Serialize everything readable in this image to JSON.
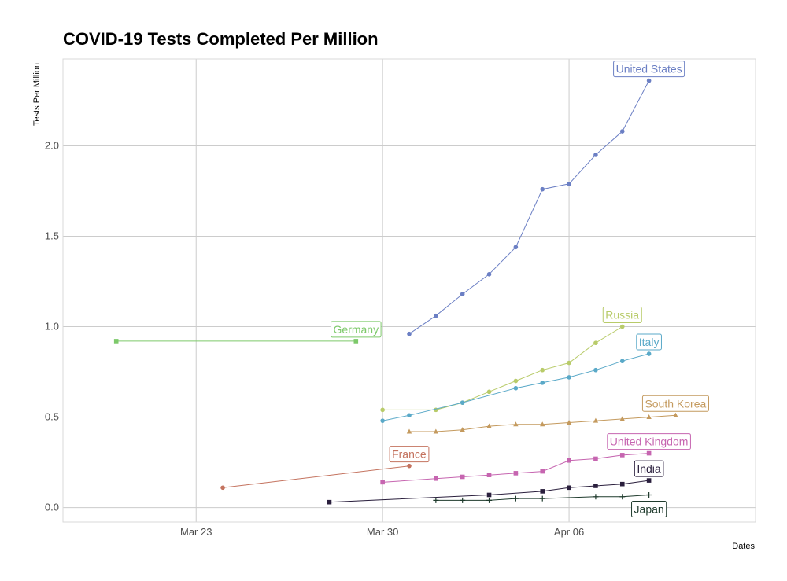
{
  "chart_data": {
    "type": "line",
    "title": "COVID-19 Tests Completed Per Million",
    "xlabel": "Dates",
    "ylabel": "Tests Per Million",
    "xlim": [
      "2020-03-18",
      "2020-04-13"
    ],
    "ylim": [
      -0.08,
      2.48
    ],
    "x_ticks": [
      {
        "date": "2020-03-23",
        "label": "Mar 23"
      },
      {
        "date": "2020-03-30",
        "label": "Mar 30"
      },
      {
        "date": "2020-04-06",
        "label": "Apr 06"
      }
    ],
    "y_ticks": [
      {
        "value": 0.0,
        "label": "0.0"
      },
      {
        "value": 0.5,
        "label": "0.5"
      },
      {
        "value": 1.0,
        "label": "1.0"
      },
      {
        "value": 1.5,
        "label": "1.5"
      },
      {
        "value": 2.0,
        "label": "2.0"
      }
    ],
    "grid": true,
    "legend": "none",
    "series": [
      {
        "name": "United States",
        "color": "#6b7fc4",
        "marker": "circle",
        "points": [
          [
            "2020-03-31",
            0.96
          ],
          [
            "2020-04-01",
            1.06
          ],
          [
            "2020-04-02",
            1.18
          ],
          [
            "2020-04-03",
            1.29
          ],
          [
            "2020-04-04",
            1.44
          ],
          [
            "2020-04-05",
            1.76
          ],
          [
            "2020-04-06",
            1.79
          ],
          [
            "2020-04-07",
            1.95
          ],
          [
            "2020-04-08",
            2.08
          ],
          [
            "2020-04-09",
            2.36
          ]
        ]
      },
      {
        "name": "Germany",
        "color": "#7dc96a",
        "marker": "square",
        "points": [
          [
            "2020-03-20",
            0.92
          ],
          [
            "2020-03-29",
            0.92
          ]
        ]
      },
      {
        "name": "Russia",
        "color": "#b8cb69",
        "marker": "circle",
        "points": [
          [
            "2020-03-30",
            0.54
          ],
          [
            "2020-04-01",
            0.54
          ],
          [
            "2020-04-02",
            0.58
          ],
          [
            "2020-04-03",
            0.64
          ],
          [
            "2020-04-04",
            0.7
          ],
          [
            "2020-04-05",
            0.76
          ],
          [
            "2020-04-06",
            0.8
          ],
          [
            "2020-04-07",
            0.91
          ],
          [
            "2020-04-08",
            1.0
          ]
        ]
      },
      {
        "name": "Italy",
        "color": "#5aa9c8",
        "marker": "circle",
        "points": [
          [
            "2020-03-30",
            0.48
          ],
          [
            "2020-03-31",
            0.51
          ],
          [
            "2020-04-02",
            0.58
          ],
          [
            "2020-04-04",
            0.66
          ],
          [
            "2020-04-05",
            0.69
          ],
          [
            "2020-04-06",
            0.72
          ],
          [
            "2020-04-07",
            0.76
          ],
          [
            "2020-04-08",
            0.81
          ],
          [
            "2020-04-09",
            0.85
          ]
        ]
      },
      {
        "name": "South Korea",
        "color": "#c49a5e",
        "marker": "triangle",
        "points": [
          [
            "2020-03-31",
            0.42
          ],
          [
            "2020-04-01",
            0.42
          ],
          [
            "2020-04-02",
            0.43
          ],
          [
            "2020-04-03",
            0.45
          ],
          [
            "2020-04-04",
            0.46
          ],
          [
            "2020-04-05",
            0.46
          ],
          [
            "2020-04-06",
            0.47
          ],
          [
            "2020-04-07",
            0.48
          ],
          [
            "2020-04-08",
            0.49
          ],
          [
            "2020-04-09",
            0.5
          ],
          [
            "2020-04-10",
            0.51
          ]
        ]
      },
      {
        "name": "United Kingdom",
        "color": "#c665b0",
        "marker": "square",
        "points": [
          [
            "2020-03-30",
            0.14
          ],
          [
            "2020-04-01",
            0.16
          ],
          [
            "2020-04-02",
            0.17
          ],
          [
            "2020-04-03",
            0.18
          ],
          [
            "2020-04-04",
            0.19
          ],
          [
            "2020-04-05",
            0.2
          ],
          [
            "2020-04-06",
            0.26
          ],
          [
            "2020-04-07",
            0.27
          ],
          [
            "2020-04-08",
            0.29
          ],
          [
            "2020-04-09",
            0.3
          ]
        ]
      },
      {
        "name": "France",
        "color": "#c4735f",
        "marker": "circle",
        "points": [
          [
            "2020-03-24",
            0.11
          ],
          [
            "2020-03-31",
            0.23
          ]
        ]
      },
      {
        "name": "India",
        "color": "#2a1f3d",
        "marker": "square",
        "points": [
          [
            "2020-03-28",
            0.03
          ],
          [
            "2020-04-03",
            0.07
          ],
          [
            "2020-04-05",
            0.09
          ],
          [
            "2020-04-06",
            0.11
          ],
          [
            "2020-04-07",
            0.12
          ],
          [
            "2020-04-08",
            0.13
          ],
          [
            "2020-04-09",
            0.15
          ]
        ]
      },
      {
        "name": "Japan",
        "color": "#1f3b2d",
        "marker": "plus",
        "points": [
          [
            "2020-04-01",
            0.04
          ],
          [
            "2020-04-02",
            0.04
          ],
          [
            "2020-04-03",
            0.04
          ],
          [
            "2020-04-04",
            0.05
          ],
          [
            "2020-04-05",
            0.05
          ],
          [
            "2020-04-07",
            0.06
          ],
          [
            "2020-04-08",
            0.06
          ],
          [
            "2020-04-09",
            0.07
          ]
        ]
      }
    ]
  }
}
